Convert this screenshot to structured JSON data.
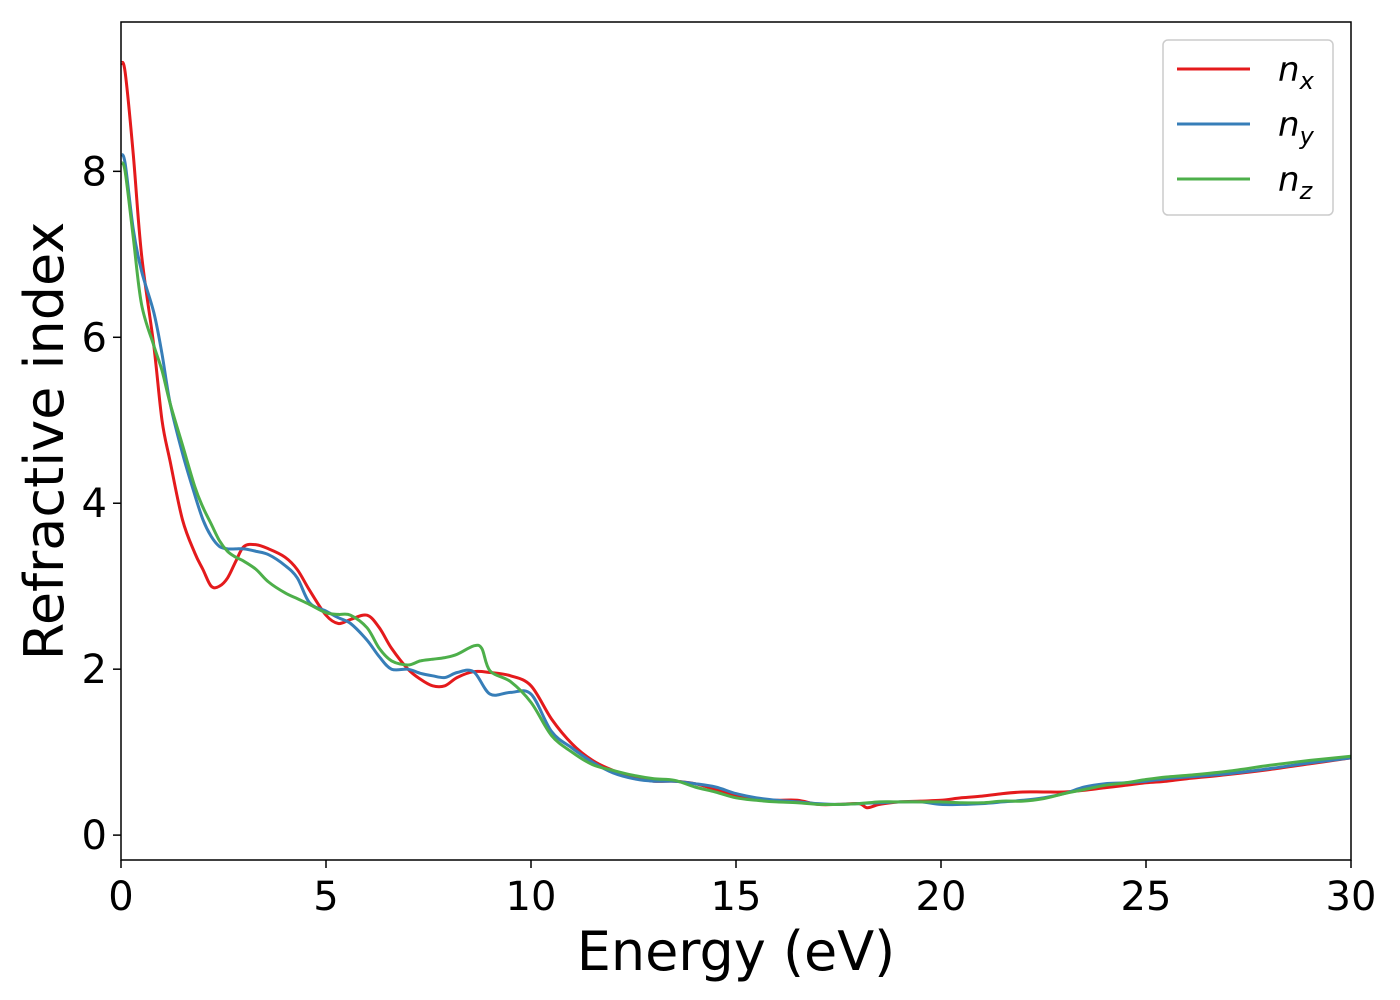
{
  "chart_data": {
    "type": "line",
    "title": "",
    "xlabel": "Energy (eV)",
    "ylabel": "Refractive index",
    "xlim": [
      0,
      30
    ],
    "ylim": [
      -0.3,
      9.8
    ],
    "xticks": [
      0,
      5,
      10,
      15,
      20,
      25,
      30
    ],
    "yticks": [
      0,
      2,
      4,
      6,
      8
    ],
    "grid": false,
    "legend_position": "top-right",
    "series": [
      {
        "name": "n_x",
        "symbol": "n",
        "subscript": "x",
        "color": "#e41a1c",
        "x": [
          0,
          0.1,
          0.3,
          0.5,
          0.8,
          1.0,
          1.2,
          1.5,
          1.8,
          2.0,
          2.2,
          2.4,
          2.6,
          2.8,
          3.0,
          3.3,
          3.6,
          4.0,
          4.3,
          4.6,
          5.0,
          5.3,
          5.6,
          6.0,
          6.3,
          6.6,
          7.0,
          7.3,
          7.6,
          7.9,
          8.2,
          8.6,
          9.0,
          9.5,
          10.0,
          10.5,
          11.0,
          11.5,
          12.0,
          12.5,
          13.0,
          13.5,
          14.0,
          14.5,
          15.0,
          15.5,
          16.0,
          16.5,
          17.0,
          17.5,
          18.0,
          18.2,
          18.5,
          19.0,
          19.5,
          20.0,
          20.5,
          21.0,
          21.5,
          22.0,
          22.5,
          23.0,
          23.5,
          24.0,
          24.5,
          25.0,
          25.5,
          26.0,
          27.0,
          28.0,
          29.0,
          30.0
        ],
        "y": [
          9.3,
          9.2,
          8.2,
          7.0,
          5.9,
          5.0,
          4.5,
          3.8,
          3.4,
          3.2,
          3.0,
          3.0,
          3.1,
          3.3,
          3.48,
          3.5,
          3.45,
          3.35,
          3.2,
          2.95,
          2.65,
          2.55,
          2.6,
          2.65,
          2.5,
          2.25,
          2.0,
          1.88,
          1.8,
          1.8,
          1.9,
          1.97,
          1.96,
          1.92,
          1.8,
          1.4,
          1.1,
          0.9,
          0.78,
          0.7,
          0.65,
          0.65,
          0.62,
          0.55,
          0.48,
          0.43,
          0.42,
          0.42,
          0.37,
          0.37,
          0.38,
          0.33,
          0.37,
          0.4,
          0.41,
          0.42,
          0.45,
          0.47,
          0.5,
          0.52,
          0.52,
          0.52,
          0.54,
          0.57,
          0.6,
          0.63,
          0.65,
          0.68,
          0.73,
          0.79,
          0.86,
          0.93
        ]
      },
      {
        "name": "n_y",
        "symbol": "n",
        "subscript": "y",
        "color": "#377eb8",
        "x": [
          0,
          0.1,
          0.3,
          0.5,
          0.8,
          1.0,
          1.2,
          1.5,
          1.8,
          2.0,
          2.2,
          2.4,
          2.6,
          2.8,
          3.0,
          3.3,
          3.6,
          4.0,
          4.3,
          4.6,
          5.0,
          5.3,
          5.6,
          6.0,
          6.3,
          6.6,
          7.0,
          7.3,
          7.6,
          7.9,
          8.2,
          8.6,
          9.0,
          9.5,
          10.0,
          10.5,
          11.0,
          11.5,
          12.0,
          12.5,
          13.0,
          13.5,
          14.0,
          14.5,
          15.0,
          15.5,
          16.0,
          16.5,
          17.0,
          17.5,
          18.0,
          18.5,
          19.0,
          19.5,
          20.0,
          20.5,
          21.0,
          21.5,
          22.0,
          22.5,
          23.0,
          23.5,
          24.0,
          24.5,
          25.0,
          25.5,
          26.0,
          27.0,
          28.0,
          29.0,
          30.0
        ],
        "y": [
          8.2,
          8.1,
          7.3,
          6.8,
          6.3,
          5.8,
          5.2,
          4.6,
          4.1,
          3.8,
          3.6,
          3.48,
          3.45,
          3.45,
          3.45,
          3.42,
          3.38,
          3.25,
          3.1,
          2.8,
          2.7,
          2.62,
          2.55,
          2.35,
          2.15,
          2.0,
          2.0,
          1.95,
          1.92,
          1.9,
          1.96,
          1.97,
          1.7,
          1.72,
          1.7,
          1.25,
          1.05,
          0.88,
          0.75,
          0.68,
          0.65,
          0.65,
          0.62,
          0.58,
          0.5,
          0.45,
          0.42,
          0.4,
          0.38,
          0.37,
          0.38,
          0.39,
          0.4,
          0.4,
          0.37,
          0.37,
          0.38,
          0.4,
          0.42,
          0.45,
          0.5,
          0.58,
          0.62,
          0.63,
          0.65,
          0.68,
          0.7,
          0.74,
          0.8,
          0.87,
          0.93
        ]
      },
      {
        "name": "n_z",
        "symbol": "n",
        "subscript": "z",
        "color": "#4daf4a",
        "x": [
          0,
          0.1,
          0.3,
          0.5,
          0.8,
          1.0,
          1.2,
          1.5,
          1.8,
          2.0,
          2.2,
          2.4,
          2.6,
          2.8,
          3.0,
          3.3,
          3.6,
          4.0,
          4.3,
          4.6,
          5.0,
          5.3,
          5.6,
          6.0,
          6.3,
          6.6,
          7.0,
          7.3,
          7.6,
          7.9,
          8.2,
          8.6,
          8.8,
          9.0,
          9.5,
          10.0,
          10.5,
          11.0,
          11.5,
          12.0,
          12.5,
          13.0,
          13.5,
          14.0,
          14.5,
          15.0,
          15.5,
          16.0,
          16.5,
          17.0,
          17.5,
          18.0,
          18.5,
          19.0,
          19.5,
          20.0,
          20.5,
          21.0,
          21.5,
          22.0,
          22.5,
          23.0,
          23.5,
          24.0,
          24.5,
          25.0,
          25.5,
          26.0,
          27.0,
          28.0,
          29.0,
          30.0
        ],
        "y": [
          8.1,
          8.0,
          7.2,
          6.4,
          5.9,
          5.6,
          5.2,
          4.7,
          4.2,
          3.95,
          3.75,
          3.55,
          3.42,
          3.35,
          3.3,
          3.2,
          3.05,
          2.92,
          2.85,
          2.78,
          2.68,
          2.66,
          2.65,
          2.5,
          2.25,
          2.1,
          2.05,
          2.1,
          2.12,
          2.14,
          2.18,
          2.28,
          2.25,
          1.98,
          1.85,
          1.6,
          1.2,
          1.0,
          0.85,
          0.78,
          0.72,
          0.68,
          0.66,
          0.58,
          0.52,
          0.45,
          0.42,
          0.4,
          0.39,
          0.37,
          0.37,
          0.38,
          0.4,
          0.4,
          0.4,
          0.4,
          0.39,
          0.39,
          0.41,
          0.41,
          0.44,
          0.5,
          0.55,
          0.6,
          0.63,
          0.67,
          0.7,
          0.72,
          0.77,
          0.84,
          0.9,
          0.95
        ]
      }
    ]
  }
}
